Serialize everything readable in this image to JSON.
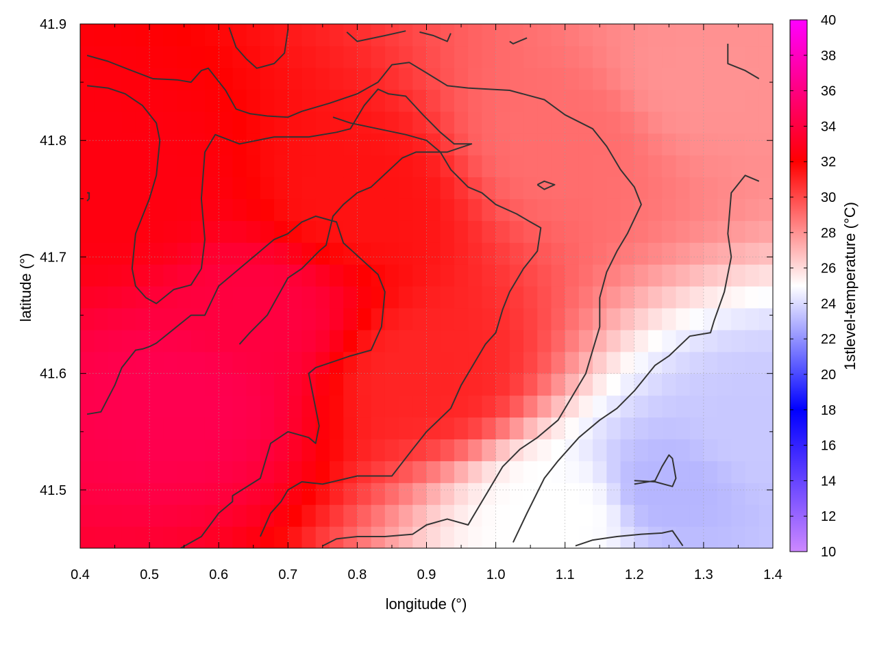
{
  "chart_data": {
    "type": "heatmap",
    "title": "",
    "xlabel": "longitude (°)",
    "ylabel": "latitude (°)",
    "colorbar_label": "1stlevel-temperature (°C)",
    "xlim": [
      0.4,
      1.4
    ],
    "ylim": [
      41.45,
      41.9
    ],
    "x_ticks": [
      0.4,
      0.5,
      0.6,
      0.7,
      0.8,
      0.9,
      1.0,
      1.1,
      1.2,
      1.3,
      1.4
    ],
    "x_tick_labels": [
      "0.4",
      "0.5",
      "0.6",
      "0.7",
      "0.8",
      "0.9",
      "1.0",
      "1.1",
      "1.2",
      "1.3",
      "1.4"
    ],
    "y_ticks": [
      41.5,
      41.6,
      41.7,
      41.8,
      41.9
    ],
    "y_tick_labels": [
      "41.5",
      "41.6",
      "41.7",
      "41.8",
      "41.9"
    ],
    "colorbar_range": [
      10,
      40
    ],
    "colorbar_ticks": [
      10,
      12,
      14,
      16,
      18,
      20,
      22,
      24,
      26,
      28,
      30,
      32,
      34,
      36,
      38,
      40
    ],
    "colorbar_tick_labels": [
      "10",
      "12",
      "14",
      "16",
      "18",
      "20",
      "22",
      "24",
      "26",
      "28",
      "30",
      "32",
      "34",
      "36",
      "38",
      "40"
    ],
    "colormap": [
      {
        "value": 10,
        "color": "#cc88ff"
      },
      {
        "value": 18,
        "color": "#0000ff"
      },
      {
        "value": 25,
        "color": "#ffffff"
      },
      {
        "value": 32,
        "color": "#ff0000"
      },
      {
        "value": 40,
        "color": "#ff00ff"
      }
    ],
    "grid": true,
    "contour_color": "#333333",
    "field": {
      "description_points": [
        {
          "lon": 0.55,
          "lat": 41.58,
          "value": 34.5
        },
        {
          "lon": 0.65,
          "lat": 41.65,
          "value": 34
        },
        {
          "lon": 0.45,
          "lat": 41.75,
          "value": 32.5
        },
        {
          "lon": 0.8,
          "lat": 41.75,
          "value": 31.5
        },
        {
          "lon": 0.9,
          "lat": 41.6,
          "value": 31
        },
        {
          "lon": 1.1,
          "lat": 41.8,
          "value": 29
        },
        {
          "lon": 1.3,
          "lat": 41.85,
          "value": 28
        },
        {
          "lon": 1.1,
          "lat": 41.48,
          "value": 25
        },
        {
          "lon": 1.25,
          "lat": 41.5,
          "value": 23
        },
        {
          "lon": 1.38,
          "lat": 41.55,
          "value": 23.5
        }
      ]
    },
    "contours": [
      {
        "points": [
          [
            0.41,
            41.565
          ],
          [
            0.43,
            41.567
          ],
          [
            0.45,
            41.59
          ],
          [
            0.46,
            41.605
          ],
          [
            0.48,
            41.62
          ],
          [
            0.49,
            41.621
          ],
          [
            0.5,
            41.623
          ],
          [
            0.51,
            41.626
          ],
          [
            0.56,
            41.65
          ],
          [
            0.58,
            41.65
          ],
          [
            0.6,
            41.675
          ],
          [
            0.63,
            41.69
          ],
          [
            0.68,
            41.715
          ],
          [
            0.7,
            41.72
          ],
          [
            0.72,
            41.73
          ],
          [
            0.74,
            41.735
          ],
          [
            0.77,
            41.73
          ],
          [
            0.78,
            41.712
          ],
          [
            0.83,
            41.685
          ],
          [
            0.84,
            41.67
          ],
          [
            0.835,
            41.64
          ],
          [
            0.82,
            41.62
          ],
          [
            0.79,
            41.615
          ],
          [
            0.74,
            41.605
          ],
          [
            0.73,
            41.6
          ],
          [
            0.745,
            41.555
          ],
          [
            0.74,
            41.54
          ],
          [
            0.73,
            41.545
          ],
          [
            0.7,
            41.55
          ],
          [
            0.675,
            41.54
          ],
          [
            0.665,
            41.52
          ],
          [
            0.66,
            41.51
          ],
          [
            0.62,
            41.495
          ],
          [
            0.62,
            41.49
          ],
          [
            0.6,
            41.48
          ],
          [
            0.575,
            41.46
          ],
          [
            0.545,
            41.45
          ]
        ]
      },
      {
        "points": [
          [
            0.41,
            41.847
          ],
          [
            0.44,
            41.845
          ],
          [
            0.465,
            41.84
          ],
          [
            0.49,
            41.83
          ],
          [
            0.51,
            41.815
          ],
          [
            0.515,
            41.8
          ],
          [
            0.51,
            41.77
          ],
          [
            0.5,
            41.75
          ],
          [
            0.48,
            41.72
          ],
          [
            0.475,
            41.69
          ],
          [
            0.48,
            41.675
          ],
          [
            0.495,
            41.665
          ],
          [
            0.51,
            41.66
          ],
          [
            0.535,
            41.672
          ],
          [
            0.56,
            41.676
          ],
          [
            0.575,
            41.69
          ],
          [
            0.58,
            41.715
          ],
          [
            0.575,
            41.75
          ],
          [
            0.58,
            41.79
          ],
          [
            0.595,
            41.805
          ],
          [
            0.63,
            41.797
          ],
          [
            0.68,
            41.803
          ],
          [
            0.73,
            41.803
          ],
          [
            0.77,
            41.807
          ],
          [
            0.79,
            41.81
          ],
          [
            0.81,
            41.83
          ],
          [
            0.83,
            41.844
          ],
          [
            0.845,
            41.84
          ],
          [
            0.87,
            41.838
          ],
          [
            0.895,
            41.822
          ],
          [
            0.92,
            41.807
          ],
          [
            0.94,
            41.797
          ],
          [
            0.965,
            41.797
          ],
          [
            0.93,
            41.79
          ],
          [
            0.885,
            41.79
          ],
          [
            0.865,
            41.785
          ],
          [
            0.82,
            41.76
          ],
          [
            0.8,
            41.755
          ],
          [
            0.78,
            41.745
          ],
          [
            0.765,
            41.735
          ],
          [
            0.755,
            41.71
          ],
          [
            0.745,
            41.705
          ],
          [
            0.72,
            41.69
          ],
          [
            0.7,
            41.682
          ],
          [
            0.67,
            41.65
          ],
          [
            0.645,
            41.635
          ],
          [
            0.63,
            41.625
          ]
        ]
      },
      {
        "points": [
          [
            0.41,
            41.873
          ],
          [
            0.44,
            41.868
          ],
          [
            0.47,
            41.861
          ],
          [
            0.505,
            41.853
          ],
          [
            0.54,
            41.852
          ],
          [
            0.56,
            41.85
          ],
          [
            0.575,
            41.86
          ],
          [
            0.585,
            41.862
          ],
          [
            0.61,
            41.843
          ],
          [
            0.625,
            41.827
          ],
          [
            0.645,
            41.823
          ],
          [
            0.67,
            41.821
          ],
          [
            0.7,
            41.82
          ],
          [
            0.72,
            41.825
          ],
          [
            0.76,
            41.832
          ],
          [
            0.8,
            41.84
          ],
          [
            0.83,
            41.85
          ],
          [
            0.85,
            41.865
          ],
          [
            0.875,
            41.867
          ],
          [
            0.9,
            41.858
          ],
          [
            0.93,
            41.847
          ],
          [
            0.96,
            41.845
          ],
          [
            1.02,
            41.843
          ],
          [
            1.07,
            41.835
          ],
          [
            1.1,
            41.822
          ],
          [
            1.14,
            41.81
          ],
          [
            1.16,
            41.795
          ],
          [
            1.18,
            41.775
          ],
          [
            1.2,
            41.76
          ],
          [
            1.21,
            41.745
          ],
          [
            1.19,
            41.72
          ],
          [
            1.175,
            41.705
          ],
          [
            1.16,
            41.687
          ],
          [
            1.15,
            41.665
          ],
          [
            1.15,
            41.64
          ],
          [
            1.14,
            41.62
          ],
          [
            1.13,
            41.6
          ],
          [
            1.11,
            41.58
          ],
          [
            1.09,
            41.56
          ],
          [
            1.06,
            41.545
          ],
          [
            1.035,
            41.535
          ],
          [
            1.01,
            41.52
          ],
          [
            0.99,
            41.5
          ],
          [
            0.975,
            41.485
          ],
          [
            0.965,
            41.475
          ],
          [
            0.96,
            41.47
          ],
          [
            0.93,
            41.475
          ],
          [
            0.9,
            41.47
          ],
          [
            0.88,
            41.462
          ],
          [
            0.84,
            41.46
          ],
          [
            0.8,
            41.46
          ],
          [
            0.77,
            41.458
          ],
          [
            0.75,
            41.452
          ]
        ]
      },
      {
        "points": [
          [
            0.66,
            41.46
          ],
          [
            0.675,
            41.48
          ],
          [
            0.69,
            41.49
          ],
          [
            0.7,
            41.5
          ],
          [
            0.72,
            41.507
          ],
          [
            0.75,
            41.505
          ],
          [
            0.8,
            41.512
          ],
          [
            0.85,
            41.512
          ],
          [
            0.88,
            41.535
          ],
          [
            0.9,
            41.55
          ],
          [
            0.935,
            41.57
          ],
          [
            0.95,
            41.59
          ],
          [
            0.97,
            41.61
          ],
          [
            0.985,
            41.625
          ],
          [
            1.0,
            41.635
          ],
          [
            1.01,
            41.655
          ],
          [
            1.02,
            41.67
          ],
          [
            1.04,
            41.69
          ],
          [
            1.06,
            41.705
          ],
          [
            1.065,
            41.725
          ],
          [
            1.05,
            41.73
          ],
          [
            1.03,
            41.737
          ],
          [
            1.0,
            41.745
          ],
          [
            0.98,
            41.755
          ],
          [
            0.96,
            41.76
          ],
          [
            0.935,
            41.775
          ],
          [
            0.92,
            41.79
          ],
          [
            0.9,
            41.8
          ],
          [
            0.87,
            41.805
          ],
          [
            0.83,
            41.81
          ],
          [
            0.79,
            41.815
          ],
          [
            0.765,
            41.82
          ]
        ]
      },
      {
        "points": [
          [
            1.025,
            41.455
          ],
          [
            1.045,
            41.48
          ],
          [
            1.07,
            41.51
          ],
          [
            1.09,
            41.525
          ],
          [
            1.12,
            41.545
          ],
          [
            1.15,
            41.56
          ],
          [
            1.175,
            41.57
          ],
          [
            1.2,
            41.585
          ],
          [
            1.23,
            41.607
          ],
          [
            1.25,
            41.615
          ],
          [
            1.28,
            41.632
          ],
          [
            1.31,
            41.635
          ],
          [
            1.315,
            41.645
          ],
          [
            1.33,
            41.67
          ],
          [
            1.34,
            41.7
          ],
          [
            1.335,
            41.72
          ],
          [
            1.34,
            41.755
          ],
          [
            1.36,
            41.77
          ],
          [
            1.38,
            41.765
          ]
        ]
      },
      {
        "points": [
          [
            1.115,
            41.452
          ],
          [
            1.14,
            41.457
          ],
          [
            1.175,
            41.46
          ],
          [
            1.21,
            41.462
          ],
          [
            1.24,
            41.463
          ],
          [
            1.255,
            41.465
          ],
          [
            1.27,
            41.452
          ]
        ]
      },
      {
        "points": [
          [
            1.2,
            41.508
          ],
          [
            1.23,
            41.507
          ],
          [
            1.255,
            41.503
          ],
          [
            1.26,
            41.51
          ],
          [
            1.255,
            41.527
          ],
          [
            1.25,
            41.53
          ],
          [
            1.24,
            41.52
          ],
          [
            1.23,
            41.508
          ],
          [
            1.2,
            41.505
          ]
        ]
      },
      {
        "points": [
          [
            1.06,
            41.762
          ],
          [
            1.07,
            41.765
          ],
          [
            1.085,
            41.762
          ],
          [
            1.07,
            41.758
          ],
          [
            1.06,
            41.762
          ]
        ]
      },
      {
        "points": [
          [
            0.615,
            41.897
          ],
          [
            0.625,
            41.88
          ],
          [
            0.64,
            41.87
          ],
          [
            0.655,
            41.862
          ],
          [
            0.68,
            41.866
          ],
          [
            0.695,
            41.875
          ],
          [
            0.7,
            41.895
          ]
        ]
      },
      {
        "points": [
          [
            0.785,
            41.893
          ],
          [
            0.8,
            41.885
          ],
          [
            0.84,
            41.89
          ],
          [
            0.87,
            41.894
          ]
        ]
      },
      {
        "points": [
          [
            0.89,
            41.893
          ],
          [
            0.91,
            41.89
          ],
          [
            0.93,
            41.885
          ],
          [
            0.935,
            41.892
          ]
        ]
      },
      {
        "points": [
          [
            1.02,
            41.885
          ],
          [
            1.025,
            41.883
          ],
          [
            1.045,
            41.888
          ]
        ]
      },
      {
        "points": [
          [
            1.335,
            41.883
          ],
          [
            1.335,
            41.866
          ],
          [
            1.36,
            41.86
          ],
          [
            1.38,
            41.853
          ]
        ]
      },
      {
        "points": [
          [
            0.41,
            41.755
          ],
          [
            0.413,
            41.755
          ],
          [
            0.413,
            41.75
          ],
          [
            0.41,
            41.748
          ]
        ]
      }
    ]
  }
}
